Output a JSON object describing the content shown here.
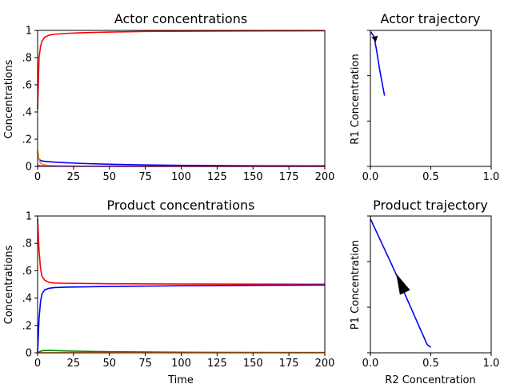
{
  "chart_data": [
    {
      "type": "line",
      "title": "Actor concentrations",
      "xlabel": "",
      "ylabel": "Concentrations",
      "xlim": [
        0,
        200
      ],
      "ylim": [
        0,
        1
      ],
      "xticks": [
        "0",
        "25",
        "50",
        "75",
        "100",
        "125",
        "150",
        "175",
        "200"
      ],
      "yticks": [
        "0",
        ".2",
        ".4",
        ".6",
        ".8",
        "1"
      ],
      "grid": false,
      "series": [
        {
          "color": "#ff0000",
          "x": [
            0,
            1,
            2,
            3,
            5,
            8,
            12,
            20,
            30,
            50,
            75,
            100,
            150,
            200
          ],
          "y": [
            0.42,
            0.8,
            0.88,
            0.92,
            0.95,
            0.965,
            0.972,
            0.978,
            0.983,
            0.988,
            0.992,
            0.994,
            0.996,
            0.997
          ]
        },
        {
          "color": "#0000ff",
          "x": [
            0,
            1,
            3,
            5,
            10,
            20,
            30,
            50,
            75,
            100,
            150,
            200
          ],
          "y": [
            0.1,
            0.05,
            0.04,
            0.037,
            0.033,
            0.027,
            0.022,
            0.016,
            0.011,
            0.008,
            0.005,
            0.004
          ]
        },
        {
          "color": "#ff8c00",
          "x": [
            0,
            1,
            2,
            4,
            8,
            15,
            30,
            100,
            200
          ],
          "y": [
            0.12,
            0.05,
            0.025,
            0.012,
            0.007,
            0.004,
            0.002,
            0.001,
            0.0
          ]
        },
        {
          "color": "#ff00ff",
          "x": [
            0,
            2,
            5,
            50,
            200
          ],
          "y": [
            0.01,
            0.004,
            0.002,
            0.001,
            0.0
          ]
        }
      ]
    },
    {
      "type": "line",
      "title": "Actor trajectory",
      "xlabel": "",
      "ylabel": "R1 Concentration",
      "xlim": [
        0,
        1
      ],
      "ylim": [
        0,
        1
      ],
      "xticks": [
        "0.0",
        "0.5",
        "1.0"
      ],
      "yticks": [],
      "grid": false,
      "series": [
        {
          "color": "#0000ff",
          "x": [
            0.117,
            0.075,
            0.05,
            0.035,
            0.025,
            0.01,
            0.005
          ],
          "y": [
            0.52,
            0.72,
            0.86,
            0.93,
            0.96,
            0.98,
            0.99
          ]
        }
      ],
      "arrow": {
        "x": 0.04,
        "y": 0.935
      }
    },
    {
      "type": "line",
      "title": "Product concentrations",
      "xlabel": "Time",
      "ylabel": "Concentrations",
      "xlim": [
        0,
        200
      ],
      "ylim": [
        0,
        1
      ],
      "xticks": [
        "0",
        "25",
        "50",
        "75",
        "100",
        "125",
        "150",
        "175",
        "200"
      ],
      "yticks": [
        "0",
        ".2",
        ".4",
        ".6",
        ".8",
        "1"
      ],
      "grid": false,
      "series": [
        {
          "color": "#ff0000",
          "x": [
            0,
            1,
            2,
            3,
            5,
            8,
            12,
            20,
            50,
            100,
            150,
            200
          ],
          "y": [
            0.98,
            0.75,
            0.62,
            0.56,
            0.53,
            0.515,
            0.51,
            0.508,
            0.505,
            0.503,
            0.502,
            0.501
          ]
        },
        {
          "color": "#0000ff",
          "x": [
            0,
            1,
            2,
            3,
            5,
            8,
            12,
            20,
            50,
            100,
            150,
            200
          ],
          "y": [
            0.0,
            0.25,
            0.37,
            0.43,
            0.46,
            0.472,
            0.477,
            0.48,
            0.485,
            0.49,
            0.493,
            0.495
          ]
        },
        {
          "color": "#008000",
          "x": [
            0,
            3,
            8,
            15,
            25,
            50,
            100,
            200
          ],
          "y": [
            0.0,
            0.015,
            0.018,
            0.015,
            0.012,
            0.008,
            0.004,
            0.002
          ]
        },
        {
          "color": "#ff8c00",
          "x": [
            0,
            50,
            200
          ],
          "y": [
            0.0,
            0.001,
            0.002
          ]
        }
      ]
    },
    {
      "type": "line",
      "title": "Product trajectory",
      "xlabel": "R2 Concentration",
      "ylabel": "P1 Concentration",
      "xlim": [
        0,
        1
      ],
      "ylim": [
        0,
        1
      ],
      "xticks": [
        "0.0",
        "0.5",
        "1.0"
      ],
      "yticks": [],
      "grid": false,
      "series": [
        {
          "color": "#0000ff",
          "x": [
            0.0,
            0.1,
            0.2,
            0.3,
            0.4,
            0.47,
            0.5
          ],
          "y": [
            0.98,
            0.79,
            0.6,
            0.4,
            0.2,
            0.06,
            0.04
          ]
        }
      ],
      "arrow": {
        "x": 0.25,
        "y": 0.51
      }
    }
  ]
}
